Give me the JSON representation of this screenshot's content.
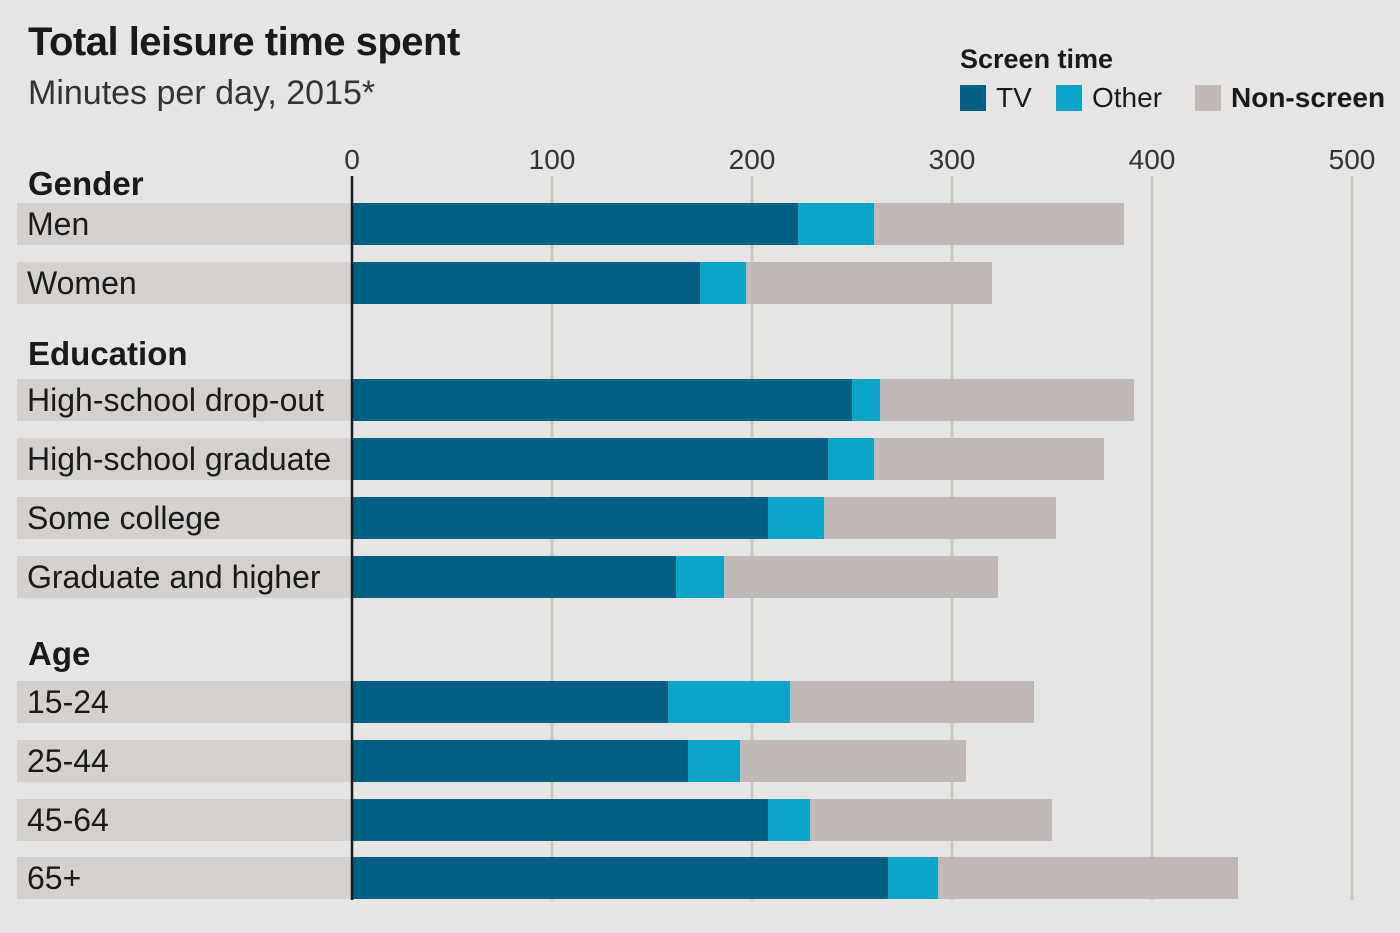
{
  "chart_data": {
    "type": "bar",
    "orientation": "horizontal",
    "stacked": true,
    "title": "Total leisure time spent",
    "subtitle": "Minutes per day, 2015*",
    "xlabel": "",
    "ylabel": "",
    "xlim": [
      0,
      500
    ],
    "xticks": [
      0,
      100,
      200,
      300,
      400,
      500
    ],
    "grid": true,
    "legend": {
      "title": "Screen time",
      "position": "top-right",
      "entries": [
        {
          "name": "TV",
          "color": "#005f83"
        },
        {
          "name": "Other",
          "color": "#0ca4c8"
        },
        {
          "name": "Non-screen",
          "color": "#bfb8b6"
        }
      ]
    },
    "series": [
      {
        "name": "TV",
        "color": "#005f83",
        "values": [
          223,
          174,
          250,
          238,
          208,
          162,
          158,
          168,
          208,
          268
        ]
      },
      {
        "name": "Other",
        "color": "#0ca4c8",
        "values": [
          38,
          23,
          14,
          23,
          28,
          24,
          61,
          26,
          21,
          25
        ]
      },
      {
        "name": "Non-screen",
        "color": "#bfb8b6",
        "values": [
          125,
          123,
          127,
          115,
          116,
          137,
          122,
          113,
          121,
          150
        ]
      }
    ],
    "groups": [
      {
        "label": "Gender",
        "categories": [
          "Men",
          "Women"
        ]
      },
      {
        "label": "Education",
        "categories": [
          "High-school drop-out",
          "High-school graduate",
          "Some college",
          "Graduate and higher"
        ]
      },
      {
        "label": "Age",
        "categories": [
          "15-24",
          "25-44",
          "45-64",
          "65+"
        ]
      }
    ],
    "categories": [
      "Men",
      "Women",
      "High-school drop-out",
      "High-school graduate",
      "Some college",
      "Graduate and higher",
      "15-24",
      "25-44",
      "45-64",
      "65+"
    ]
  }
}
